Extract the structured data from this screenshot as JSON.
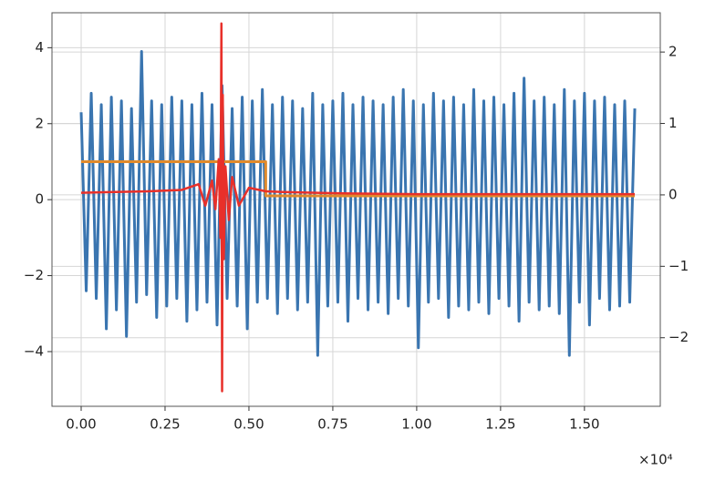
{
  "chart_data": {
    "type": "line",
    "xlim": [
      -0.087,
      1.726
    ],
    "ylim": [
      -5.44,
      4.92
    ],
    "y2lim": [
      -2.96,
      2.55
    ],
    "xticks": [
      {
        "value": 0,
        "label": "0.00"
      },
      {
        "value": 0.25,
        "label": "0.25"
      },
      {
        "value": 0.5,
        "label": "0.50"
      },
      {
        "value": 0.75,
        "label": "0.75"
      },
      {
        "value": 1.0,
        "label": "1.00"
      },
      {
        "value": 1.25,
        "label": "1.25"
      },
      {
        "value": 1.5,
        "label": "1.50"
      }
    ],
    "yticks": [
      {
        "value": -4,
        "label": "−4"
      },
      {
        "value": -2,
        "label": "−2"
      },
      0,
      2,
      4
    ],
    "y2ticks": [
      {
        "value": -2,
        "label": "−2"
      },
      {
        "value": -1,
        "label": "−1"
      },
      0,
      1,
      2
    ],
    "x_offset_label": "×10⁴",
    "grid": true,
    "series": [
      {
        "color": "#3a75b0",
        "axis": "y",
        "x": [
          0,
          0.015,
          0.03,
          0.045,
          0.06,
          0.075,
          0.09,
          0.105,
          0.12,
          0.135,
          0.15,
          0.165,
          0.18,
          0.195,
          0.21,
          0.225,
          0.24,
          0.255,
          0.27,
          0.285,
          0.3,
          0.315,
          0.33,
          0.345,
          0.36,
          0.375,
          0.39,
          0.405,
          0.42,
          0.435,
          0.45,
          0.465,
          0.48,
          0.495,
          0.51,
          0.525,
          0.54,
          0.555,
          0.57,
          0.585,
          0.6,
          0.615,
          0.63,
          0.645,
          0.66,
          0.675,
          0.69,
          0.705,
          0.72,
          0.735,
          0.75,
          0.765,
          0.78,
          0.795,
          0.81,
          0.825,
          0.84,
          0.855,
          0.87,
          0.885,
          0.9,
          0.915,
          0.93,
          0.945,
          0.96,
          0.975,
          0.99,
          1.005,
          1.02,
          1.035,
          1.05,
          1.065,
          1.08,
          1.095,
          1.11,
          1.125,
          1.14,
          1.155,
          1.17,
          1.185,
          1.2,
          1.215,
          1.23,
          1.245,
          1.26,
          1.275,
          1.29,
          1.305,
          1.32,
          1.335,
          1.35,
          1.365,
          1.38,
          1.395,
          1.41,
          1.425,
          1.44,
          1.455,
          1.47,
          1.485,
          1.5,
          1.515,
          1.53,
          1.545,
          1.56,
          1.575,
          1.59,
          1.605,
          1.62,
          1.635,
          1.65
        ],
        "values": [
          2.3,
          -2.4,
          2.8,
          -2.6,
          2.5,
          -3.4,
          2.7,
          -2.9,
          2.6,
          -3.6,
          2.4,
          -2.7,
          3.9,
          -2.5,
          2.6,
          -3.1,
          2.5,
          -2.8,
          2.7,
          -2.6,
          2.6,
          -3.2,
          2.5,
          -2.9,
          2.8,
          -2.7,
          2.5,
          -3.3,
          3.0,
          -2.6,
          2.4,
          -2.8,
          2.7,
          -3.4,
          2.6,
          -2.7,
          2.9,
          -2.6,
          2.5,
          -3.0,
          2.7,
          -2.6,
          2.6,
          -2.9,
          2.4,
          -2.7,
          2.8,
          -4.1,
          2.5,
          -2.8,
          2.6,
          -2.7,
          2.8,
          -3.2,
          2.5,
          -2.6,
          2.7,
          -2.9,
          2.6,
          -2.7,
          2.5,
          -3.0,
          2.7,
          -2.6,
          2.9,
          -2.8,
          2.6,
          -3.9,
          2.5,
          -2.7,
          2.8,
          -2.6,
          2.6,
          -3.1,
          2.7,
          -2.8,
          2.5,
          -2.9,
          2.9,
          -2.7,
          2.6,
          -3.0,
          2.7,
          -2.6,
          2.5,
          -2.8,
          2.8,
          -3.2,
          3.2,
          -2.7,
          2.6,
          -2.9,
          2.7,
          -2.8,
          2.5,
          -3.0,
          2.9,
          -4.1,
          2.6,
          -2.7,
          2.8,
          -3.3,
          2.6,
          -2.6,
          2.7,
          -2.9,
          2.5,
          -2.8,
          2.6,
          -2.7,
          2.4
        ]
      },
      {
        "color": "#e08a2c",
        "axis": "y",
        "x": [
          0,
          0.55,
          0.55,
          1.65
        ],
        "values": [
          1.0,
          1.0,
          0.1,
          0.1
        ]
      },
      {
        "color": "#e8302a",
        "axis": "y2",
        "x": [
          0,
          0.1,
          0.2,
          0.3,
          0.35,
          0.37,
          0.39,
          0.4,
          0.41,
          0.415,
          0.418,
          0.42,
          0.422,
          0.425,
          0.43,
          0.44,
          0.45,
          0.47,
          0.5,
          0.55,
          0.6,
          0.7,
          0.8,
          1.0,
          1.3,
          1.65
        ],
        "values": [
          0.03,
          0.04,
          0.05,
          0.07,
          0.15,
          -0.15,
          0.2,
          -0.2,
          0.5,
          -0.6,
          2.4,
          -2.75,
          1.4,
          -0.9,
          0.4,
          -0.35,
          0.25,
          -0.15,
          0.1,
          0.05,
          0.04,
          0.03,
          0.02,
          0.01,
          0.01,
          0.01
        ]
      }
    ]
  }
}
